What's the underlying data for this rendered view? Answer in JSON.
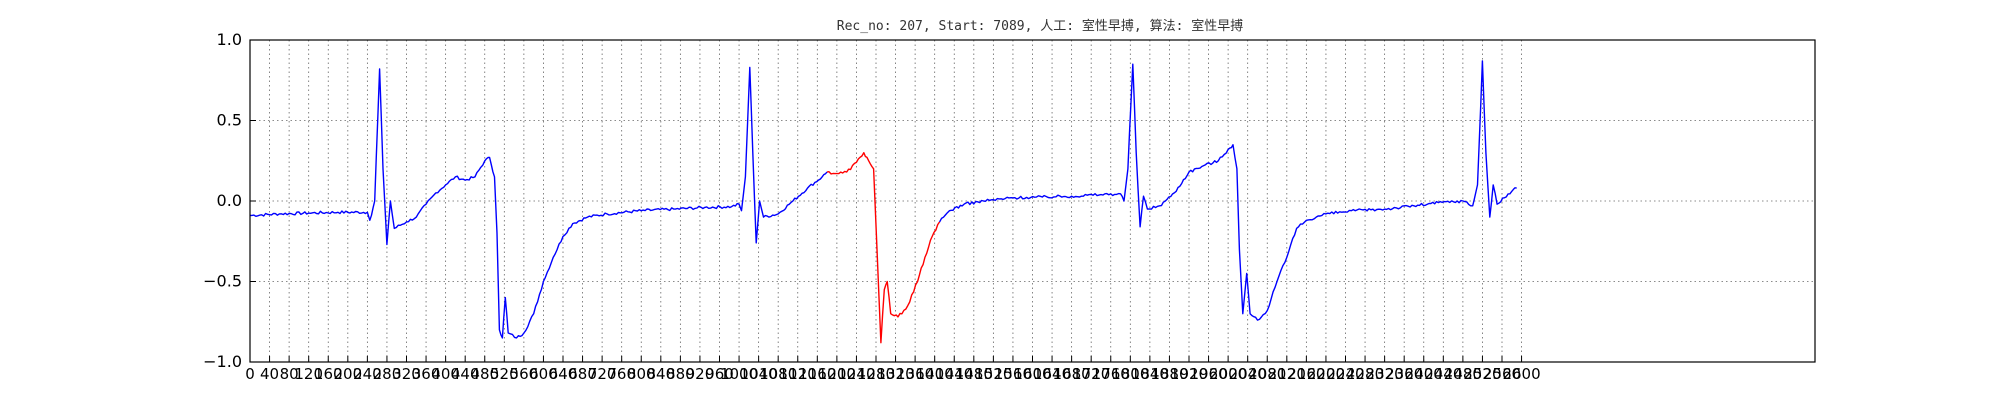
{
  "chart_data": {
    "type": "line",
    "title": "Rec_no: 207, Start: 7089, 人工: 室性早搏, 算法: 室性早搏",
    "xlabel": "",
    "ylabel": "",
    "xlim": [
      0,
      3200
    ],
    "ylim": [
      -1.0,
      1.0
    ],
    "grid": true,
    "y_ticks": [
      "1.0",
      "0.5",
      "0.0",
      "−0.5",
      "−1.0"
    ],
    "y_tick_values": [
      1.0,
      0.5,
      0.0,
      -0.5,
      -1.0
    ],
    "x_tick_labels": [
      "0",
      "40",
      "80",
      "120",
      "160",
      "200",
      "240",
      "280",
      "320",
      "360",
      "400",
      "440",
      "480",
      "520",
      "560",
      "600",
      "640",
      "680",
      "720",
      "760",
      "800",
      "840",
      "880",
      "920",
      "960",
      "1000",
      "1040",
      "1080",
      "1120",
      "1160",
      "1200",
      "1240",
      "1280",
      "1320",
      "1360",
      "1400",
      "1440",
      "1480",
      "1520",
      "1560",
      "1600",
      "1640",
      "1680",
      "1720",
      "1760",
      "1800",
      "1840",
      "1880",
      "1920",
      "1960",
      "2000",
      "2040",
      "2080",
      "2120",
      "2160",
      "2200",
      "2240",
      "2280",
      "2320",
      "2360",
      "2400",
      "2440",
      "2480",
      "2520",
      "2560",
      "2600"
    ],
    "colors": {
      "normal": "#0000ff",
      "highlight": "#ff0000",
      "grid": "#666666"
    },
    "series": [
      {
        "color": "#0000ff",
        "points": [
          [
            0,
            -0.09
          ],
          [
            60,
            -0.08
          ],
          [
            120,
            -0.075
          ],
          [
            180,
            -0.07
          ],
          [
            240,
            -0.07
          ],
          [
            245,
            -0.12
          ],
          [
            255,
            0.0
          ],
          [
            265,
            0.82
          ],
          [
            272,
            0.2
          ],
          [
            280,
            -0.27
          ],
          [
            287,
            0.0
          ],
          [
            295,
            -0.17
          ],
          [
            320,
            -0.13
          ],
          [
            340,
            -0.1
          ],
          [
            360,
            -0.02
          ],
          [
            380,
            0.05
          ],
          [
            400,
            0.1
          ],
          [
            420,
            0.15
          ],
          [
            440,
            0.13
          ],
          [
            460,
            0.15
          ],
          [
            480,
            0.25
          ],
          [
            490,
            0.27
          ],
          [
            500,
            0.15
          ],
          [
            505,
            -0.2
          ],
          [
            510,
            -0.8
          ],
          [
            516,
            -0.85
          ],
          [
            522,
            -0.6
          ],
          [
            528,
            -0.82
          ],
          [
            545,
            -0.85
          ],
          [
            560,
            -0.82
          ],
          [
            580,
            -0.7
          ],
          [
            600,
            -0.5
          ],
          [
            620,
            -0.35
          ],
          [
            640,
            -0.22
          ],
          [
            660,
            -0.14
          ],
          [
            690,
            -0.1
          ],
          [
            730,
            -0.08
          ],
          [
            800,
            -0.06
          ],
          [
            870,
            -0.05
          ],
          [
            930,
            -0.04
          ],
          [
            985,
            -0.035
          ],
          [
            1000,
            -0.02
          ],
          [
            1005,
            -0.06
          ],
          [
            1013,
            0.15
          ],
          [
            1022,
            0.83
          ],
          [
            1028,
            0.3
          ],
          [
            1035,
            -0.26
          ],
          [
            1042,
            0.0
          ],
          [
            1050,
            -0.1
          ],
          [
            1080,
            -0.08
          ],
          [
            1110,
            0.0
          ],
          [
            1140,
            0.08
          ],
          [
            1170,
            0.15
          ],
          [
            1180,
            0.18
          ]
        ]
      },
      {
        "color": "#ff0000",
        "points": [
          [
            1180,
            0.18
          ],
          [
            1200,
            0.17
          ],
          [
            1220,
            0.18
          ],
          [
            1240,
            0.24
          ],
          [
            1255,
            0.3
          ],
          [
            1265,
            0.25
          ],
          [
            1275,
            0.2
          ],
          [
            1282,
            -0.3
          ],
          [
            1290,
            -0.88
          ],
          [
            1297,
            -0.55
          ],
          [
            1303,
            -0.5
          ],
          [
            1310,
            -0.7
          ],
          [
            1325,
            -0.72
          ],
          [
            1345,
            -0.65
          ],
          [
            1365,
            -0.5
          ],
          [
            1380,
            -0.35
          ],
          [
            1395,
            -0.22
          ],
          [
            1410,
            -0.13
          ]
        ]
      },
      {
        "color": "#0000ff",
        "points": [
          [
            1410,
            -0.13
          ],
          [
            1430,
            -0.06
          ],
          [
            1460,
            -0.02
          ],
          [
            1500,
            0.0
          ],
          [
            1560,
            0.02
          ],
          [
            1620,
            0.025
          ],
          [
            1680,
            0.03
          ],
          [
            1740,
            0.04
          ],
          [
            1780,
            0.045
          ],
          [
            1787,
            0.0
          ],
          [
            1795,
            0.2
          ],
          [
            1805,
            0.85
          ],
          [
            1812,
            0.3
          ],
          [
            1820,
            -0.16
          ],
          [
            1827,
            0.03
          ],
          [
            1835,
            -0.05
          ],
          [
            1860,
            -0.03
          ],
          [
            1890,
            0.05
          ],
          [
            1920,
            0.18
          ],
          [
            1950,
            0.22
          ],
          [
            1980,
            0.25
          ],
          [
            2000,
            0.32
          ],
          [
            2010,
            0.35
          ],
          [
            2018,
            0.2
          ],
          [
            2023,
            -0.3
          ],
          [
            2030,
            -0.7
          ],
          [
            2038,
            -0.45
          ],
          [
            2045,
            -0.7
          ],
          [
            2060,
            -0.74
          ],
          [
            2080,
            -0.68
          ],
          [
            2100,
            -0.5
          ],
          [
            2120,
            -0.35
          ],
          [
            2140,
            -0.17
          ],
          [
            2160,
            -0.12
          ],
          [
            2200,
            -0.08
          ],
          [
            2260,
            -0.06
          ],
          [
            2320,
            -0.05
          ],
          [
            2380,
            -0.03
          ],
          [
            2430,
            -0.01
          ],
          [
            2480,
            0.0
          ],
          [
            2500,
            -0.03
          ],
          [
            2510,
            0.1
          ],
          [
            2520,
            0.87
          ],
          [
            2527,
            0.3
          ],
          [
            2535,
            -0.1
          ],
          [
            2542,
            0.1
          ],
          [
            2550,
            -0.02
          ],
          [
            2565,
            0.02
          ],
          [
            2580,
            0.06
          ],
          [
            2590,
            0.08
          ]
        ]
      }
    ]
  }
}
